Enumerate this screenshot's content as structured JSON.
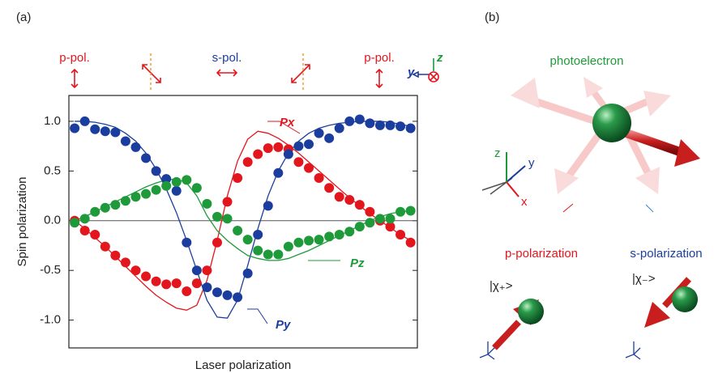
{
  "chart_data": {
    "type": "scatter",
    "panel_label": "(a)",
    "x_label": "Laser polarization",
    "y_label": "Spin polarization",
    "x": [
      0,
      6,
      12,
      18,
      24,
      30,
      36,
      42,
      48,
      54,
      60,
      66,
      72,
      78,
      84,
      90,
      96,
      102,
      108,
      114,
      120,
      126,
      132,
      138,
      144,
      150,
      156,
      162,
      168,
      174,
      180,
      186,
      192,
      198
    ],
    "xlim": [
      -3.4,
      202
    ],
    "ylim": [
      -1.28,
      1.26
    ],
    "yticks": [
      {
        "value": -1,
        "label": "-1.0"
      },
      -0.5,
      {
        "value": 0,
        "label": "0.0"
      },
      0.5,
      {
        "value": 1,
        "label": "1.0"
      }
    ],
    "zero_line": true,
    "polarization_labels": [
      "p-pol.",
      "s-pol.",
      "p-pol."
    ],
    "series": [
      {
        "name": "Px",
        "color": "#e3161e",
        "values": [
          0,
          -0.1,
          -0.14,
          -0.26,
          -0.35,
          -0.42,
          -0.5,
          -0.56,
          -0.61,
          -0.64,
          -0.63,
          -0.71,
          -0.63,
          -0.5,
          -0.22,
          0.19,
          0.43,
          0.59,
          0.67,
          0.73,
          0.74,
          0.72,
          0.59,
          0.53,
          0.43,
          0.33,
          0.24,
          0.21,
          0.16,
          0.09,
          0,
          -0.06,
          -0.14,
          -0.22
        ],
        "fit": [
          0,
          -0.08,
          -0.17,
          -0.26,
          -0.36,
          -0.46,
          -0.56,
          -0.66,
          -0.75,
          -0.82,
          -0.88,
          -0.9,
          -0.85,
          -0.6,
          -0.2,
          0.25,
          0.6,
          0.82,
          0.9,
          0.88,
          0.83,
          0.76,
          0.68,
          0.59,
          0.5,
          0.41,
          0.32,
          0.23,
          0.15,
          0.07,
          0,
          -0.07,
          -0.14,
          -0.2
        ]
      },
      {
        "name": "Py",
        "color": "#1b3d9e",
        "values": [
          0.93,
          1,
          0.92,
          0.9,
          0.89,
          0.8,
          0.74,
          0.63,
          0.5,
          0.42,
          0.3,
          -0.22,
          -0.5,
          -0.67,
          -0.72,
          -0.75,
          -0.77,
          -0.53,
          -0.14,
          0.15,
          0.48,
          0.67,
          0.75,
          0.77,
          0.88,
          0.83,
          0.93,
          1,
          1.02,
          0.98,
          0.96,
          0.96,
          0.95,
          0.93
        ],
        "fit": [
          1,
          1,
          0.99,
          0.97,
          0.94,
          0.88,
          0.8,
          0.68,
          0.52,
          0.32,
          0.08,
          -0.2,
          -0.5,
          -0.8,
          -0.97,
          -0.98,
          -0.8,
          -0.45,
          -0.08,
          0.25,
          0.5,
          0.68,
          0.8,
          0.88,
          0.93,
          0.96,
          0.98,
          0.99,
          1,
          1,
          1,
          0.99,
          0.97,
          0.95
        ]
      },
      {
        "name": "Pz",
        "color": "#1f9a3a",
        "values": [
          -0.02,
          0.02,
          0.09,
          0.13,
          0.16,
          0.2,
          0.24,
          0.27,
          0.31,
          0.35,
          0.39,
          0.41,
          0.33,
          0.17,
          0.04,
          0.02,
          -0.1,
          -0.19,
          -0.3,
          -0.34,
          -0.34,
          -0.26,
          -0.22,
          -0.2,
          -0.19,
          -0.16,
          -0.14,
          -0.11,
          -0.06,
          -0.02,
          0.02,
          0.02,
          0.09,
          0.1
        ],
        "fit": [
          0,
          0.04,
          0.09,
          0.14,
          0.19,
          0.24,
          0.29,
          0.34,
          0.38,
          0.41,
          0.42,
          0.38,
          0.25,
          0.05,
          -0.1,
          -0.2,
          -0.28,
          -0.35,
          -0.38,
          -0.4,
          -0.4,
          -0.38,
          -0.34,
          -0.3,
          -0.25,
          -0.2,
          -0.15,
          -0.1,
          -0.05,
          0,
          0.04,
          0.07,
          0.09,
          0.1
        ]
      }
    ]
  },
  "diagram": {
    "panel_label": "(b)",
    "photoelectron": "photoelectron",
    "p_polarization": "p-polarization",
    "s_polarization": "s-polarization",
    "chi_plus": "|χ₊>",
    "chi_minus": "|χ₋>",
    "axis_x": "x",
    "axis_y": "y",
    "axis_z": "z"
  }
}
